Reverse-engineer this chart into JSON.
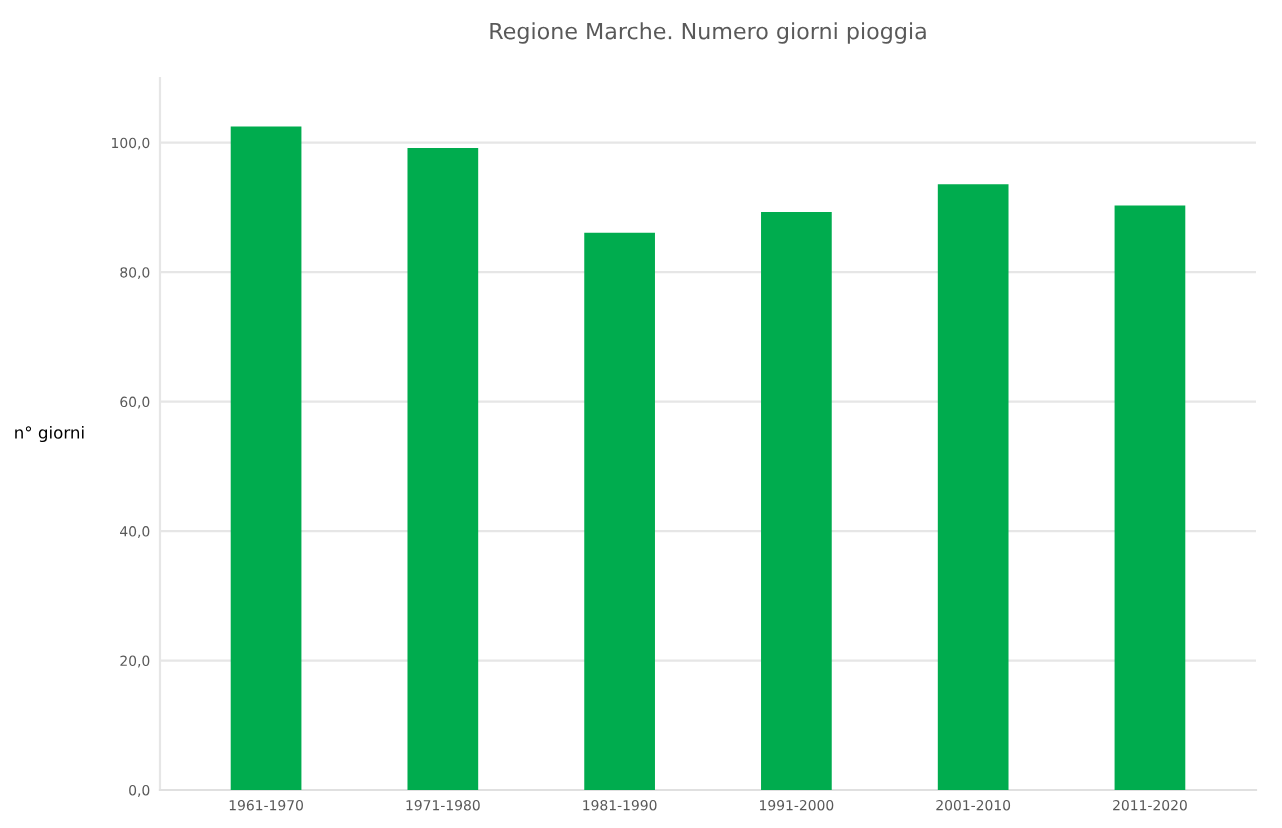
{
  "chart_data": {
    "type": "bar",
    "title": "Regione Marche. Numero giorni pioggia",
    "ylabel": "n° giorni",
    "categories": [
      "1961-1970",
      "1971-1980",
      "1981-1990",
      "1991-2000",
      "2001-2010",
      "2011-2020"
    ],
    "values": [
      102.5,
      99.2,
      86.1,
      89.3,
      93.6,
      90.3
    ],
    "color": "#00ac4e",
    "ylim": [
      0,
      110
    ],
    "yticks": [
      {
        "value": 0,
        "label": "0,0"
      },
      {
        "value": 20,
        "label": "20,0"
      },
      {
        "value": 40,
        "label": "40,0"
      },
      {
        "value": 60,
        "label": "60,0"
      },
      {
        "value": 80,
        "label": "80,0"
      },
      {
        "value": 100,
        "label": "100,0"
      }
    ],
    "grid": "y",
    "legend": false
  }
}
